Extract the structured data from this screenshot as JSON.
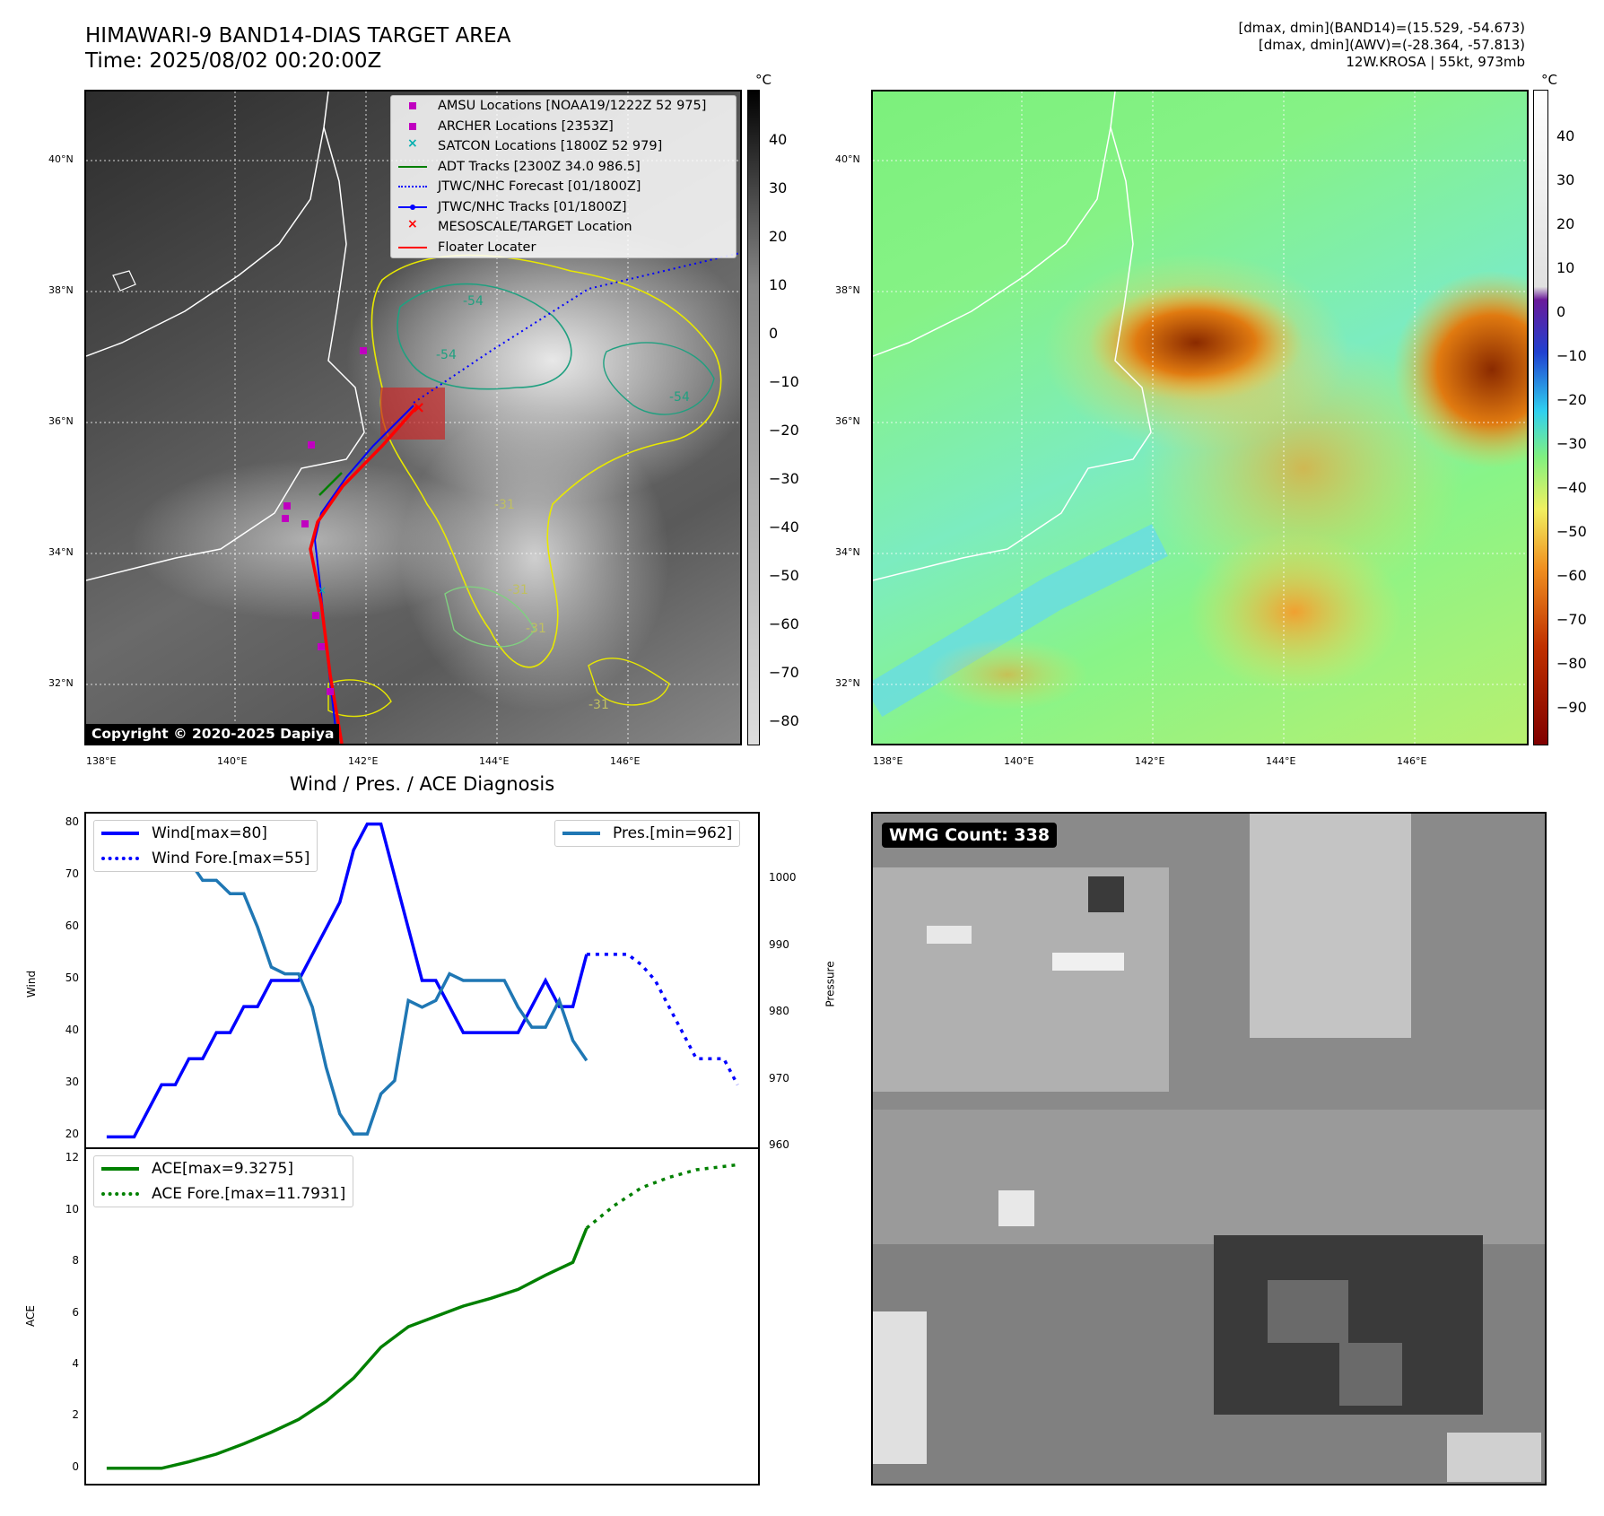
{
  "header": {
    "title_line1": "HIMAWARI-9 BAND14-DIAS TARGET AREA",
    "title_line2": "Time: 2025/08/02 00:20:00Z",
    "info_line1": "[dmax, dmin](BAND14)=(15.529, -54.673)",
    "info_line2": "[dmax, dmin](AWV)=(-28.364, -57.813)",
    "info_line3": "12W.KROSA | 55kt, 973mb"
  },
  "map_axes": {
    "lat_labels": [
      "40°N",
      "38°N",
      "36°N",
      "34°N",
      "32°N"
    ],
    "lon_labels": [
      "138°E",
      "140°E",
      "142°E",
      "144°E",
      "146°E"
    ]
  },
  "left_map": {
    "colorbar_unit": "°C",
    "colorbar_ticks": [
      "40",
      "30",
      "20",
      "10",
      "0",
      "−10",
      "−20",
      "−30",
      "−40",
      "−50",
      "−60",
      "−70",
      "−80"
    ],
    "contour_labels": [
      "-54",
      "-54",
      "-54",
      "-31",
      "-31",
      "-31",
      "-31"
    ],
    "legend": [
      {
        "label": "AMSU Locations [NOAA19/1222Z 52 975]",
        "symbol": "square",
        "color": "#c000c0"
      },
      {
        "label": "ARCHER Locations [2353Z]",
        "symbol": "square",
        "color": "#c000c0"
      },
      {
        "label": "SATCON Locations [1800Z 52 979]",
        "symbol": "x",
        "color": "#00b0b0"
      },
      {
        "label": "ADT Tracks [2300Z 34.0 986.5]",
        "symbol": "line",
        "color": "#008000"
      },
      {
        "label": "JTWC/NHC Forecast [01/1800Z]",
        "symbol": "dotted",
        "color": "#0000ff"
      },
      {
        "label": "JTWC/NHC Tracks [01/1800Z]",
        "symbol": "line-dot",
        "color": "#0000ff"
      },
      {
        "label": "MESOSCALE/TARGET Location",
        "symbol": "x",
        "color": "#ff0000"
      },
      {
        "label": "Floater Locater",
        "symbol": "line",
        "color": "#ff0000"
      }
    ],
    "copyright": "Copyright © 2020-2025 Dapiya"
  },
  "right_map": {
    "colorbar_unit": "°C",
    "colorbar_ticks": [
      "40",
      "30",
      "20",
      "10",
      "0",
      "−10",
      "−20",
      "−30",
      "−40",
      "−50",
      "−60",
      "−70",
      "−80",
      "−90"
    ]
  },
  "diagnosis": {
    "title": "Wind / Pres. / ACE Diagnosis"
  },
  "wmg": {
    "label": "WMG Count: 338"
  },
  "chart_data": [
    {
      "type": "line",
      "title": "Wind / Pres. / ACE Diagnosis",
      "ylabel": "Wind",
      "y2label": "Pressure",
      "ylim": [
        18,
        82
      ],
      "y2lim": [
        960,
        1010
      ],
      "yticks": [
        20,
        30,
        40,
        50,
        60,
        70,
        80
      ],
      "y2ticks": [
        960,
        970,
        980,
        990,
        1000
      ],
      "series": [
        {
          "name": "Wind[max=80]",
          "style": "solid",
          "color": "#0000ff",
          "x": [
            0,
            1,
            2,
            3,
            4,
            5,
            6,
            7,
            8,
            9,
            10,
            11,
            12,
            13,
            14,
            15,
            16,
            17,
            18,
            19,
            20,
            21,
            22,
            23,
            24,
            25,
            26,
            27,
            28,
            29,
            30,
            31,
            32,
            33,
            34,
            35
          ],
          "values": [
            20,
            20,
            20,
            25,
            30,
            30,
            35,
            35,
            40,
            40,
            45,
            45,
            50,
            50,
            50,
            55,
            60,
            65,
            75,
            80,
            80,
            70,
            60,
            50,
            50,
            45,
            40,
            40,
            40,
            40,
            40,
            45,
            50,
            45,
            45,
            55
          ]
        },
        {
          "name": "Wind Fore.[max=55]",
          "style": "dotted",
          "color": "#0000ff",
          "x": [
            35,
            36,
            37,
            38,
            39,
            40,
            41,
            42,
            43,
            44,
            45,
            46
          ],
          "values": [
            55,
            55,
            55,
            55,
            53,
            50,
            45,
            40,
            35,
            35,
            35,
            30
          ]
        },
        {
          "name": "Pres.[min=962]",
          "style": "solid",
          "color": "#1f77b4",
          "axis": "right",
          "x": [
            0,
            1,
            2,
            3,
            4,
            5,
            6,
            7,
            8,
            9,
            10,
            11,
            12,
            13,
            14,
            15,
            16,
            17,
            18,
            19,
            20,
            21,
            22,
            23,
            24,
            25,
            26,
            27,
            28,
            29,
            30,
            31,
            32,
            33,
            34,
            35
          ],
          "values": [
            1007,
            1007,
            1007,
            1005,
            1004,
            1003,
            1003,
            1000,
            1000,
            998,
            998,
            993,
            987,
            986,
            986,
            981,
            972,
            965,
            962,
            962,
            968,
            970,
            982,
            981,
            982,
            986,
            985,
            985,
            985,
            985,
            981,
            978,
            978,
            982,
            976,
            973
          ]
        }
      ]
    },
    {
      "type": "line",
      "ylabel": "ACE",
      "ylim": [
        -0.6,
        12.4
      ],
      "yticks": [
        0,
        2,
        4,
        6,
        8,
        10,
        12
      ],
      "series": [
        {
          "name": "ACE[max=9.3275]",
          "style": "solid",
          "color": "#008000",
          "x": [
            0,
            2,
            4,
            6,
            8,
            10,
            12,
            14,
            16,
            18,
            20,
            22,
            24,
            26,
            28,
            30,
            32,
            34,
            35
          ],
          "values": [
            0,
            0,
            0,
            0.25,
            0.55,
            0.95,
            1.4,
            1.9,
            2.6,
            3.5,
            4.7,
            5.5,
            5.9,
            6.3,
            6.6,
            6.95,
            7.5,
            8.0,
            9.33
          ]
        },
        {
          "name": "ACE Fore.[max=11.7931]",
          "style": "dotted",
          "color": "#008000",
          "x": [
            35,
            37,
            39,
            41,
            43,
            46
          ],
          "values": [
            9.33,
            10.2,
            10.9,
            11.3,
            11.6,
            11.79
          ]
        }
      ]
    }
  ]
}
